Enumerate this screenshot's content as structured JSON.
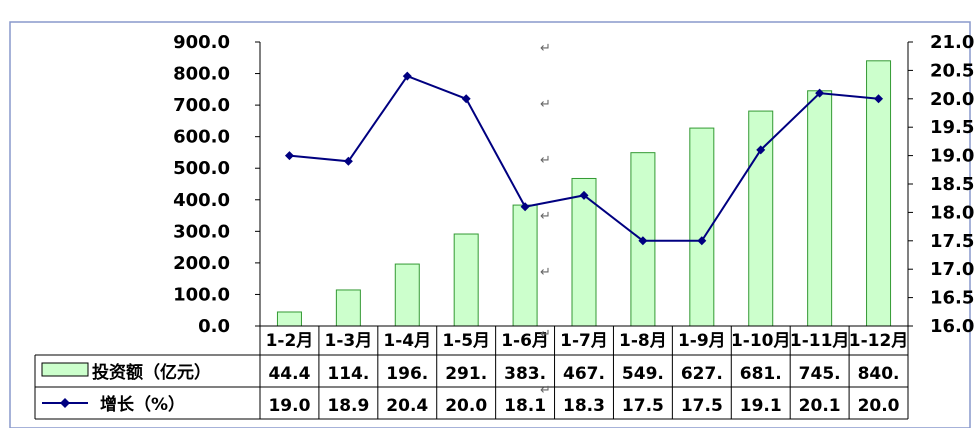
{
  "chart_data": {
    "type": "bar",
    "title": "",
    "categories": [
      "1-2月",
      "1-3月",
      "1-4月",
      "1-5月",
      "1-6月",
      "1-7月",
      "1-8月",
      "1-9月",
      "1-10月",
      "1-11月",
      "1-12月"
    ],
    "series": [
      {
        "name": "投资额（亿元）",
        "type": "bar",
        "axis": "left",
        "values": [
          44.4,
          114.2,
          196.3,
          291.5,
          383.2,
          467.5,
          549.3,
          627.2,
          681.1,
          745.4,
          840.4
        ],
        "table_labels": [
          "44.4",
          "114.",
          "196.",
          "291.",
          "383.",
          "467.",
          "549.",
          "627.",
          "681.",
          "745.",
          "840."
        ],
        "color": "#ccffcc",
        "stroke": "#339933"
      },
      {
        "name": "增长（%）",
        "type": "line",
        "axis": "right",
        "values": [
          19.0,
          18.9,
          20.4,
          20.0,
          18.1,
          18.3,
          17.5,
          17.5,
          19.1,
          20.1,
          20.0
        ],
        "table_labels": [
          "19.0",
          "18.9",
          "20.4",
          "20.0",
          "18.1",
          "18.3",
          "17.5",
          "17.5",
          "19.1",
          "20.1",
          "20.0"
        ],
        "color": "#000080"
      }
    ],
    "y_left": {
      "min": 0,
      "max": 900,
      "step": 100,
      "ticks": [
        "0.0",
        "100.0",
        "200.0",
        "300.0",
        "400.0",
        "500.0",
        "600.0",
        "700.0",
        "800.0",
        "900.0"
      ]
    },
    "y_right": {
      "min": 16,
      "max": 21,
      "step": 0.5,
      "ticks": [
        "16.0",
        "16.5",
        "17.0",
        "17.5",
        "18.0",
        "18.5",
        "19.0",
        "19.5",
        "20.0",
        "20.5",
        "21.0"
      ]
    },
    "grid": false,
    "legend": "data-table"
  },
  "paragraph_mark": "↵",
  "colors": {
    "frame": "#8899cc",
    "axis": "#000000",
    "line": "#000080",
    "bar_fill": "#ccffcc",
    "bar_stroke": "#339933"
  }
}
